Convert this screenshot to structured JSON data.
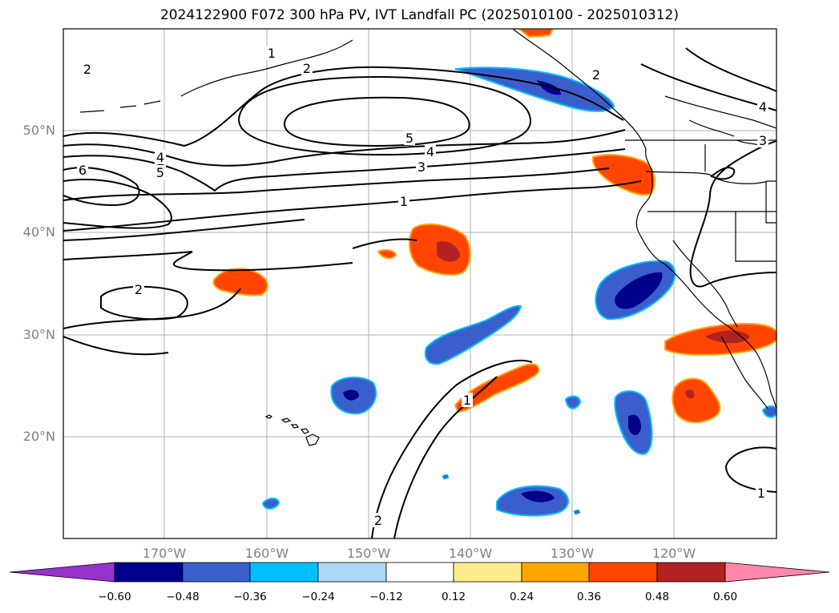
{
  "title": "2024122900 F072 300 hPa PV, IVT Landfall PC (2025010100 - 2025010312)",
  "lat_labels": [
    "50°N",
    "40°N",
    "30°N",
    "20°N"
  ],
  "lon_labels": [
    "170°W",
    "160°W",
    "150°W",
    "140°W",
    "130°W",
    "120°W"
  ],
  "contour_labels": [
    "1",
    "2",
    "2",
    "2",
    "4",
    "5",
    "5",
    "4",
    "3",
    "1",
    "6",
    "4",
    "5",
    "2",
    "1",
    "2",
    "3",
    "1"
  ],
  "colorbar": {
    "ticks": [
      "−0.60",
      "−0.48",
      "−0.36",
      "−0.24",
      "−0.12",
      "0.12",
      "0.24",
      "0.36",
      "0.48",
      "0.60"
    ],
    "colors": {
      "under": "#9932cc",
      "neg060": "#00008b",
      "neg048": "#3a5fcd",
      "neg036": "#00bfff",
      "neg024": "#add8f6",
      "zero": "#ffffff",
      "pos012": "#ffeb8a",
      "pos024": "#ffa500",
      "pos036": "#ff4500",
      "pos048": "#b22222",
      "over": "#ff88aa"
    }
  }
}
